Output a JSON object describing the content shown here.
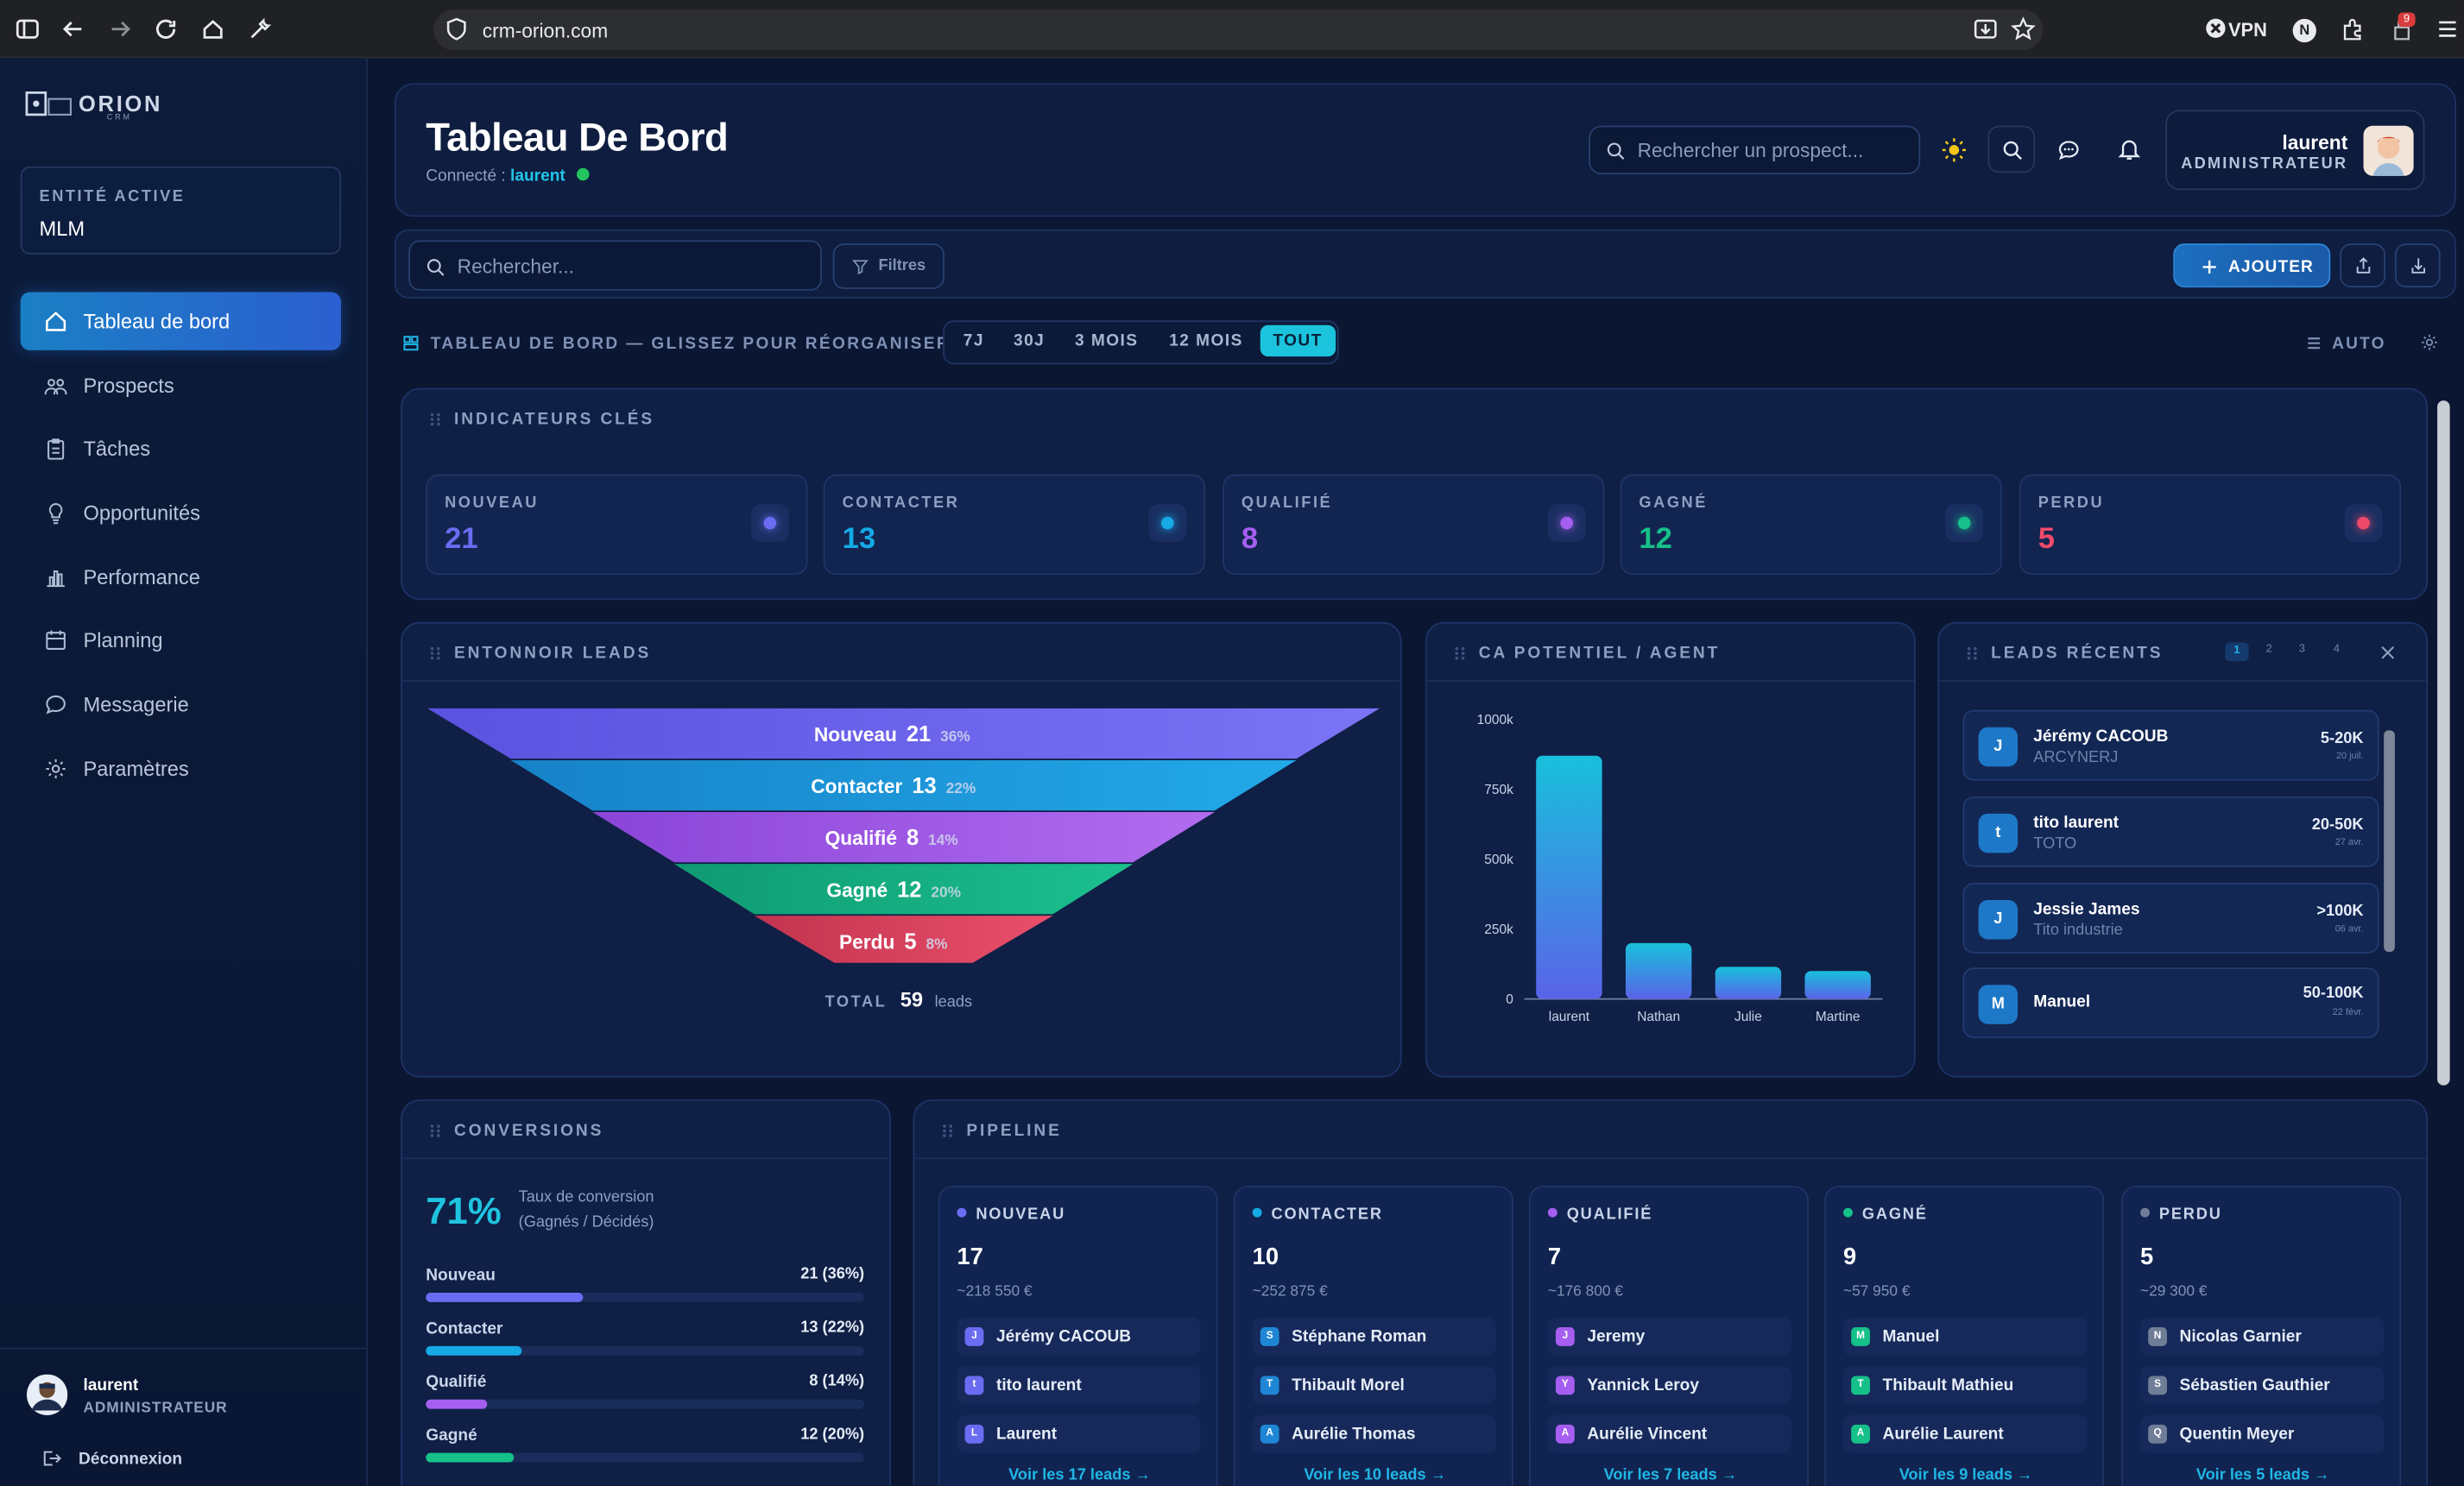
{
  "browser": {
    "url": "crm-orion.com",
    "vpn_label": "VPN",
    "ext_badge": "9",
    "profile_initial": "N"
  },
  "brand": {
    "name": "ORION",
    "sub": "CRM"
  },
  "entity": {
    "label": "ENTITÉ ACTIVE",
    "value": "MLM"
  },
  "nav": [
    {
      "label": "Tableau de bord",
      "icon": "home-icon",
      "active": true
    },
    {
      "label": "Prospects",
      "icon": "users-icon"
    },
    {
      "label": "Tâches",
      "icon": "clipboard-icon"
    },
    {
      "label": "Opportunités",
      "icon": "bulb-icon"
    },
    {
      "label": "Performance",
      "icon": "bar-chart-icon"
    },
    {
      "label": "Planning",
      "icon": "calendar-icon"
    },
    {
      "label": "Messagerie",
      "icon": "chat-icon"
    },
    {
      "label": "Paramètres",
      "icon": "gear-icon"
    }
  ],
  "side_user": {
    "name": "laurent",
    "role": "ADMINISTRATEUR",
    "logout": "Déconnexion"
  },
  "header": {
    "title": "Tableau De Bord",
    "connected_prefix": "Connecté :",
    "connected_user": "laurent",
    "search_placeholder": "Rechercher un prospect...",
    "user_name": "laurent",
    "user_role": "ADMINISTRATEUR"
  },
  "toolbar": {
    "search_placeholder": "Rechercher...",
    "filters": "Filtres",
    "add": "AJOUTER"
  },
  "dashboard": {
    "label": "TABLEAU DE BORD — GLISSEZ POUR RÉORGANISER",
    "periods": [
      "7J",
      "30J",
      "3 MOIS",
      "12 MOIS",
      "TOUT"
    ],
    "active_period": "TOUT",
    "auto": "AUTO"
  },
  "kpis": {
    "title": "INDICATEURS CLÉS",
    "items": [
      {
        "label": "NOUVEAU",
        "value": "21",
        "color": "#6b6cf2"
      },
      {
        "label": "CONTACTER",
        "value": "13",
        "color": "#15a9e6"
      },
      {
        "label": "QUALIFIÉ",
        "value": "8",
        "color": "#a55ef0"
      },
      {
        "label": "GAGNÉ",
        "value": "12",
        "color": "#16c089"
      },
      {
        "label": "PERDU",
        "value": "5",
        "color": "#ef4a6a"
      }
    ]
  },
  "funnel": {
    "title": "ENTONNOIR LEADS",
    "stages": [
      {
        "label": "Nouveau",
        "count": "21",
        "pct": "36%"
      },
      {
        "label": "Contacter",
        "count": "13",
        "pct": "22%"
      },
      {
        "label": "Qualifié",
        "count": "8",
        "pct": "14%"
      },
      {
        "label": "Gagné",
        "count": "12",
        "pct": "20%"
      },
      {
        "label": "Perdu",
        "count": "5",
        "pct": "8%"
      }
    ],
    "total_label": "TOTAL",
    "total": "59",
    "total_unit": "leads"
  },
  "ca": {
    "title": "CA POTENTIEL / AGENT"
  },
  "chart_data": {
    "type": "bar",
    "categories": [
      "laurent",
      "Nathan",
      "Julie",
      "Martine"
    ],
    "values": [
      870000,
      200000,
      115000,
      100000
    ],
    "ylim": [
      0,
      1000000
    ],
    "yticks": [
      "0",
      "250k",
      "500k",
      "750k",
      "1000k"
    ],
    "title": "",
    "xlabel": "",
    "ylabel": ""
  },
  "recent": {
    "title": "LEADS RÉCENTS",
    "pages": [
      "1",
      "2",
      "3",
      "4"
    ],
    "items": [
      {
        "initial": "J",
        "name": "Jérémy CACOUB",
        "company": "ARCYNERJ",
        "range": "5-20K",
        "date": "20 juil."
      },
      {
        "initial": "t",
        "name": "tito laurent",
        "company": "TOTO",
        "range": "20-50K",
        "date": "27 avr."
      },
      {
        "initial": "J",
        "name": "Jessie James",
        "company": "Tito industrie",
        "range": ">100K",
        "date": "06 avr."
      },
      {
        "initial": "M",
        "name": "Manuel",
        "company": "",
        "range": "50-100K",
        "date": "22 févr."
      }
    ]
  },
  "conversions": {
    "title": "CONVERSIONS",
    "rate": "71%",
    "rate_label_1": "Taux de conversion",
    "rate_label_2": "(Gagnés / Décidés)",
    "rows": [
      {
        "label": "Nouveau",
        "value": "21 (36%)",
        "pct": 36,
        "color": "#6b6cf2"
      },
      {
        "label": "Contacter",
        "value": "13 (22%)",
        "pct": 22,
        "color": "#15a9e6"
      },
      {
        "label": "Qualifié",
        "value": "8 (14%)",
        "pct": 14,
        "color": "#a55ef0"
      },
      {
        "label": "Gagné",
        "value": "12 (20%)",
        "pct": 20,
        "color": "#16c089"
      }
    ]
  },
  "pipeline": {
    "title": "PIPELINE",
    "columns": [
      {
        "label": "NOUVEAU",
        "count": "17",
        "amount": "~218 550 €",
        "color": "#6b6cf2",
        "items": [
          {
            "i": "J",
            "n": "Jérémy CACOUB"
          },
          {
            "i": "t",
            "n": "tito laurent"
          },
          {
            "i": "L",
            "n": "Laurent"
          }
        ],
        "more": "Voir les 17 leads →"
      },
      {
        "label": "CONTACTER",
        "count": "10",
        "amount": "~252 875 €",
        "color": "#15a9e6",
        "items": [
          {
            "i": "S",
            "n": "Stéphane Roman"
          },
          {
            "i": "T",
            "n": "Thibault Morel"
          },
          {
            "i": "A",
            "n": "Aurélie Thomas"
          }
        ],
        "more": "Voir les 10 leads →"
      },
      {
        "label": "QUALIFIÉ",
        "count": "7",
        "amount": "~176 800 €",
        "color": "#a55ef0",
        "items": [
          {
            "i": "J",
            "n": "Jeremy"
          },
          {
            "i": "Y",
            "n": "Yannick Leroy"
          },
          {
            "i": "A",
            "n": "Aurélie Vincent"
          }
        ],
        "more": "Voir les 7 leads →"
      },
      {
        "label": "GAGNÉ",
        "count": "9",
        "amount": "~57 950 €",
        "color": "#16c089",
        "items": [
          {
            "i": "M",
            "n": "Manuel"
          },
          {
            "i": "T",
            "n": "Thibault Mathieu"
          },
          {
            "i": "A",
            "n": "Aurélie Laurent"
          }
        ],
        "more": "Voir les 9 leads →"
      },
      {
        "label": "PERDU",
        "count": "5",
        "amount": "~29 300 €",
        "color": "#6f7d96",
        "items": [
          {
            "i": "N",
            "n": "Nicolas Garnier"
          },
          {
            "i": "S",
            "n": "Sébastien Gauthier"
          },
          {
            "i": "Q",
            "n": "Quentin Meyer"
          }
        ],
        "more": "Voir les 5 leads →"
      }
    ]
  }
}
